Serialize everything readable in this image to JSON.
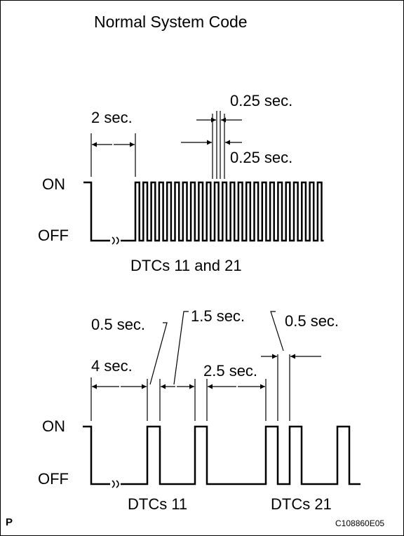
{
  "title": "Normal System Code",
  "top": {
    "on_label": "ON",
    "off_label": "OFF",
    "initial_delay": "2 sec.",
    "pulse_on": "0.25 sec.",
    "pulse_off": "0.25 sec.",
    "caption": "DTCs 11 and 21"
  },
  "bottom": {
    "on_label": "ON",
    "off_label": "OFF",
    "initial_delay": "4 sec.",
    "pulse_width": "0.5 sec.",
    "code_gap": "1.5 sec.",
    "repeat_gap": "2.5 sec.",
    "pulse_width_2": "0.5 sec.",
    "caption_left": "DTCs 11",
    "caption_right": "DTCs 21"
  },
  "corner_mark": "P",
  "figure_id": "C108860E05"
}
